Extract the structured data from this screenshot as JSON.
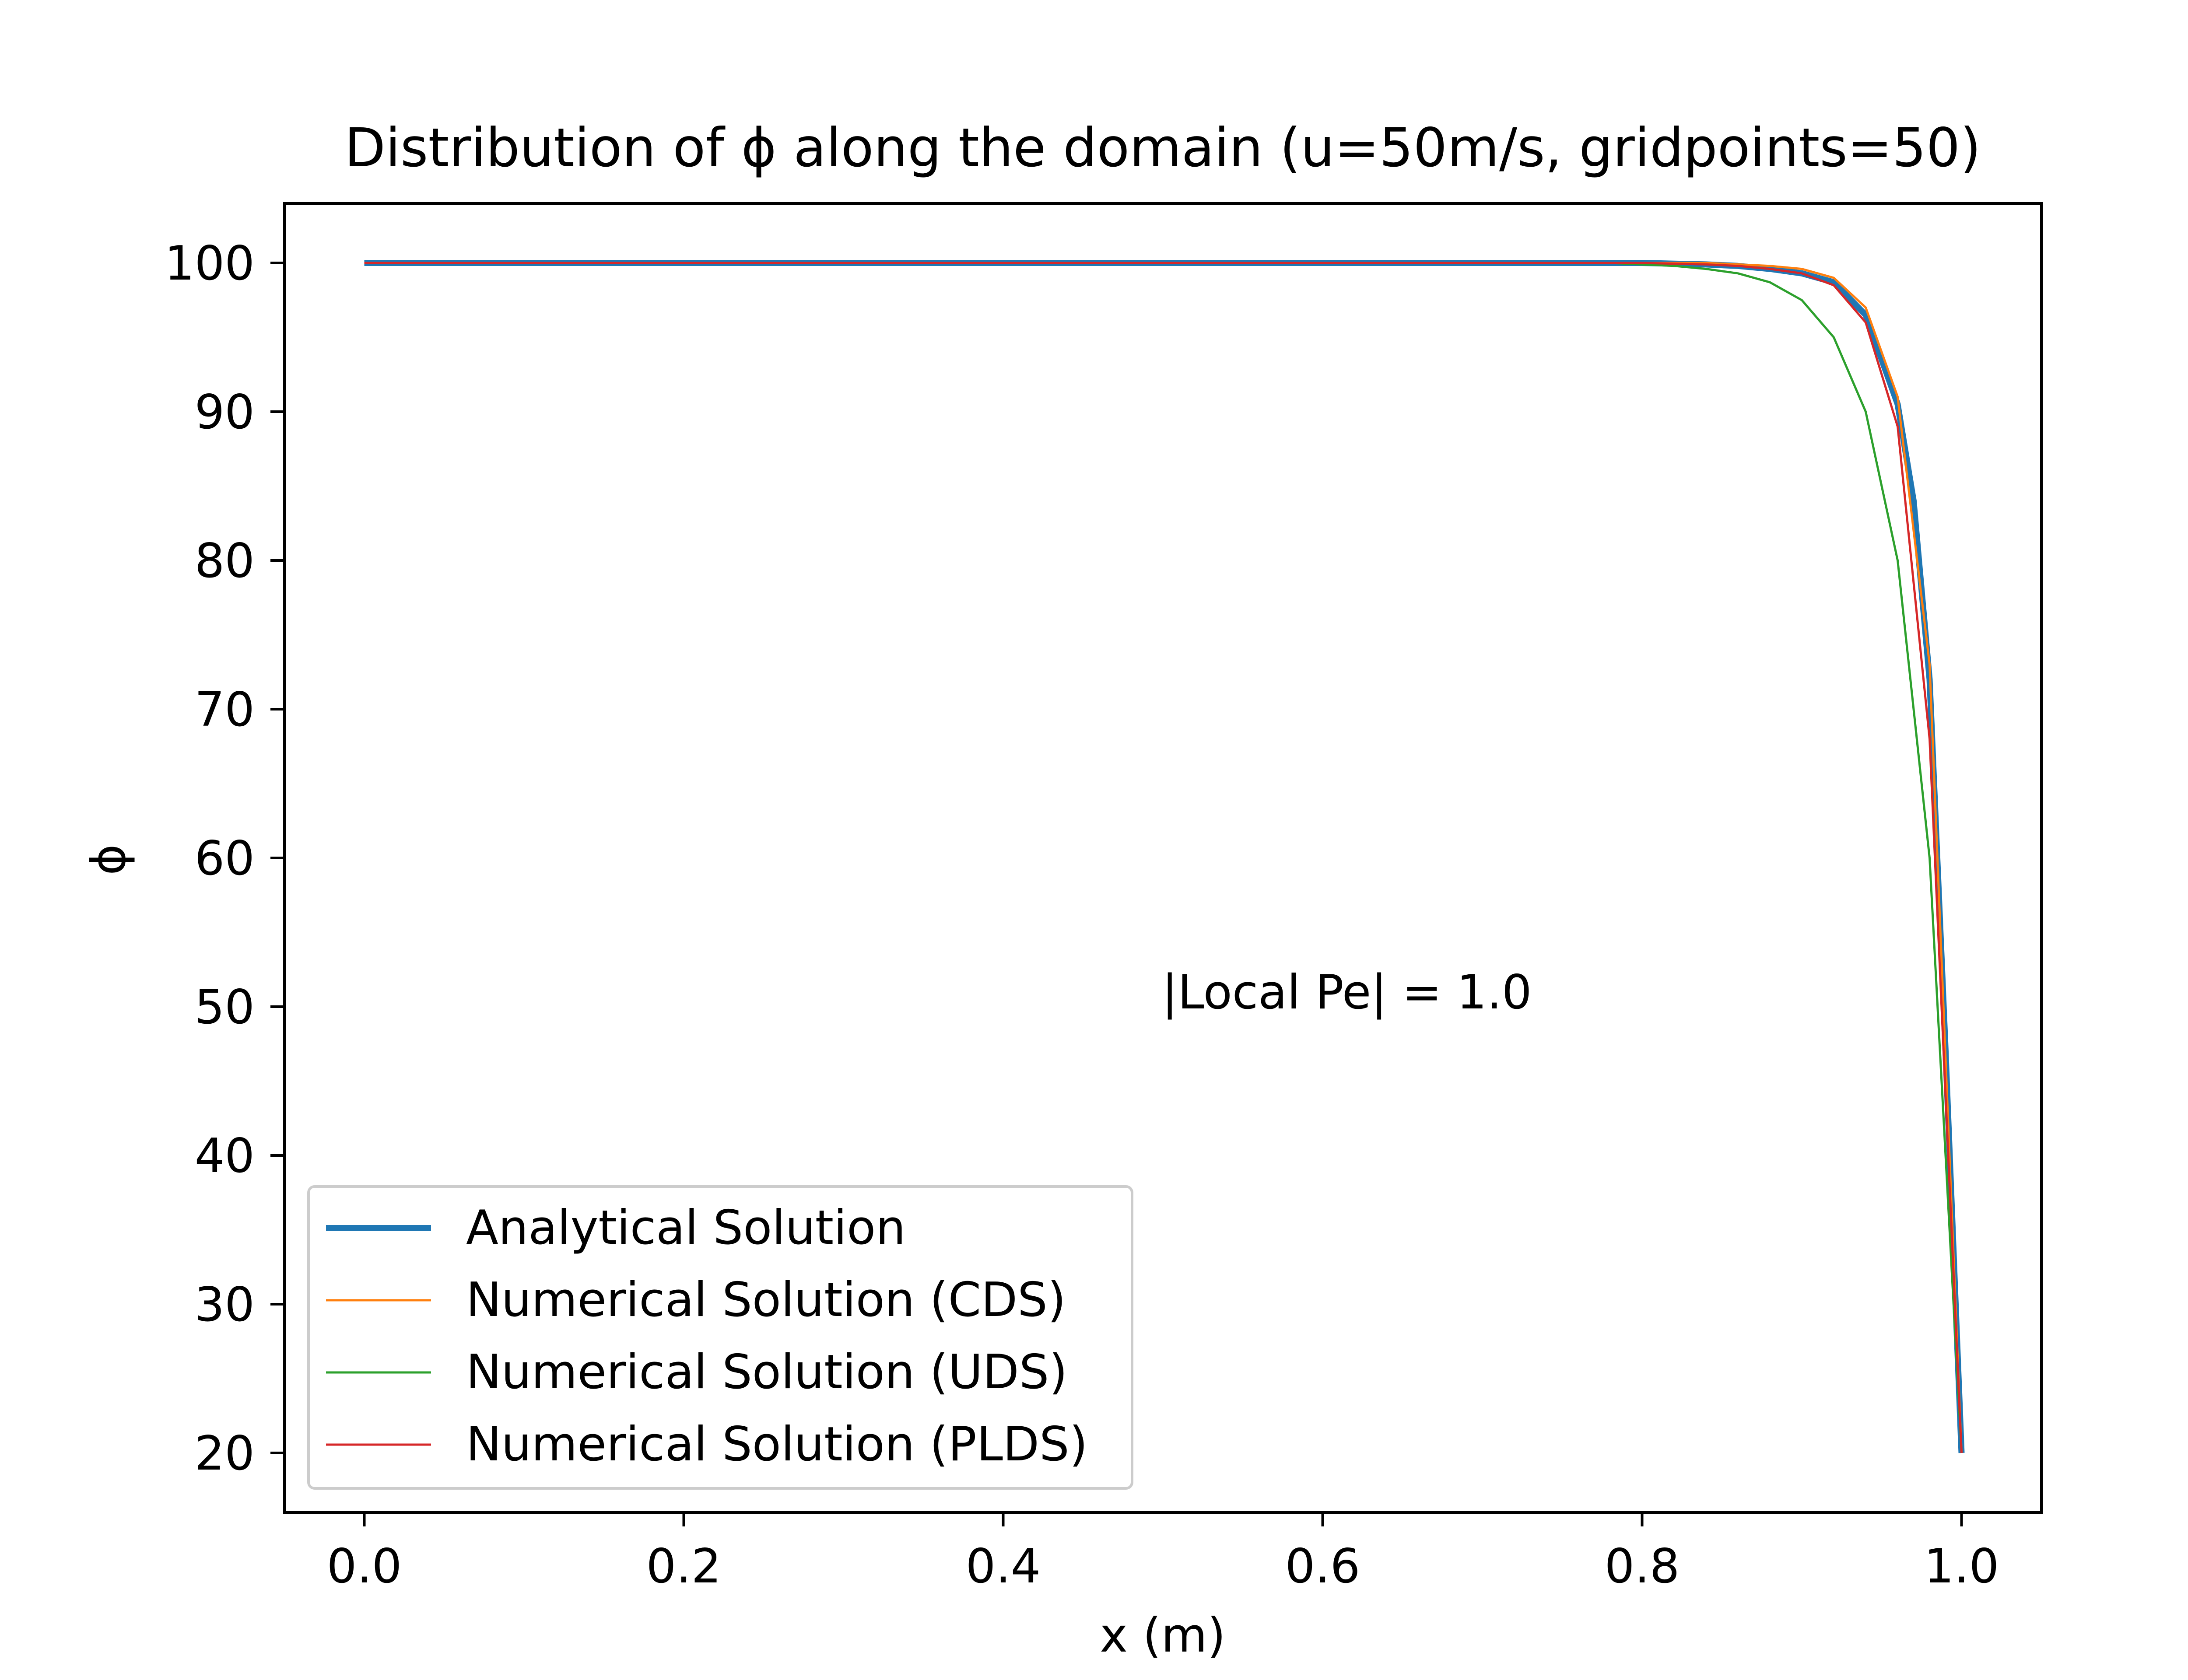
{
  "chart_data": {
    "type": "line",
    "title": "Distribution of ϕ along the domain (u=50m/s, gridpoints=50)",
    "xlabel": "x (m)",
    "ylabel": "ϕ",
    "xlim": [
      -0.05,
      1.05
    ],
    "ylim": [
      16,
      104
    ],
    "xticks": [
      0.0,
      0.2,
      0.4,
      0.6,
      0.8,
      1.0
    ],
    "xtick_labels": [
      "0.0",
      "0.2",
      "0.4",
      "0.6",
      "0.8",
      "1.0"
    ],
    "yticks": [
      20,
      30,
      40,
      50,
      60,
      70,
      80,
      90,
      100
    ],
    "ytick_labels": [
      "20",
      "30",
      "40",
      "50",
      "60",
      "70",
      "80",
      "90",
      "100"
    ],
    "grid": false,
    "legend": "lower-left",
    "annotation": {
      "text": "|Local Pe| = 1.0",
      "x": 0.5,
      "y": 50
    },
    "series": [
      {
        "name": "Analytical Solution",
        "color": "#1f77b4",
        "linewidth": "thick",
        "x": [
          0,
          0.8,
          0.84,
          0.86,
          0.88,
          0.9,
          0.92,
          0.94,
          0.96,
          0.97,
          0.98,
          0.99,
          1.0
        ],
        "y": [
          100,
          100,
          99.9,
          99.8,
          99.6,
          99.3,
          98.7,
          96.5,
          90.5,
          84,
          72,
          47,
          20
        ]
      },
      {
        "name": "Numerical Solution (CDS)",
        "color": "#ff7f0e",
        "linewidth": "thin",
        "x": [
          0,
          0.8,
          0.84,
          0.86,
          0.88,
          0.9,
          0.92,
          0.94,
          0.96,
          0.98,
          1.0
        ],
        "y": [
          100,
          100,
          100,
          99.9,
          99.8,
          99.6,
          99.0,
          97.0,
          91.0,
          73.0,
          20
        ]
      },
      {
        "name": "Numerical Solution (UDS)",
        "color": "#2ca02c",
        "linewidth": "thin",
        "x": [
          0,
          0.78,
          0.8,
          0.82,
          0.84,
          0.86,
          0.88,
          0.9,
          0.92,
          0.94,
          0.96,
          0.98,
          1.0
        ],
        "y": [
          100,
          100,
          99.9,
          99.8,
          99.6,
          99.3,
          98.7,
          97.5,
          95.0,
          90.0,
          80.0,
          60.0,
          20
        ]
      },
      {
        "name": "Numerical Solution (PLDS)",
        "color": "#d62728",
        "linewidth": "thin",
        "x": [
          0,
          0.8,
          0.84,
          0.86,
          0.88,
          0.9,
          0.92,
          0.94,
          0.96,
          0.98,
          1.0
        ],
        "y": [
          100,
          100,
          99.9,
          99.8,
          99.6,
          99.3,
          98.5,
          96.0,
          89.0,
          68.0,
          20
        ]
      }
    ]
  }
}
